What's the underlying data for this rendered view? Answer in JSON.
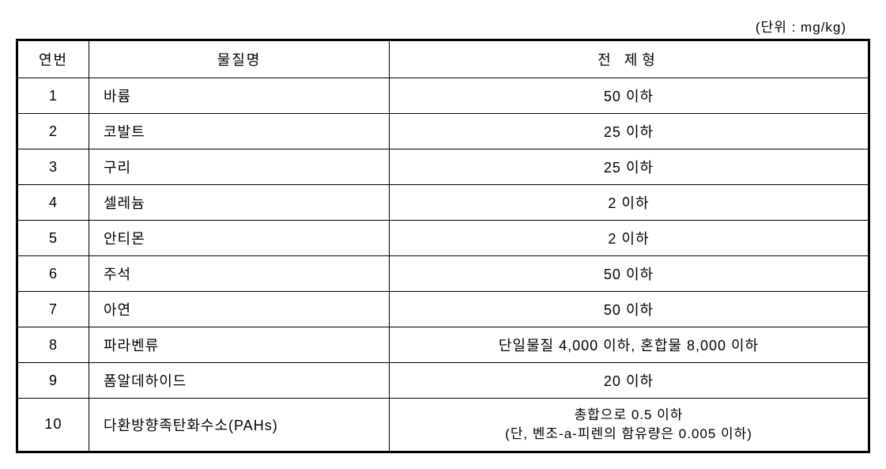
{
  "unit_label": "(단위 : mg/kg)",
  "table": {
    "headers": {
      "num": "연번",
      "name": "물질명",
      "limit": "전 제형"
    },
    "rows": [
      {
        "num": "1",
        "name": "바륨",
        "limit": "50 이하"
      },
      {
        "num": "2",
        "name": "코발트",
        "limit": "25 이하"
      },
      {
        "num": "3",
        "name": "구리",
        "limit": "25 이하"
      },
      {
        "num": "4",
        "name": "셀레늄",
        "limit": "2 이하"
      },
      {
        "num": "5",
        "name": "안티몬",
        "limit": "2 이하"
      },
      {
        "num": "6",
        "name": "주석",
        "limit": "50 이하"
      },
      {
        "num": "7",
        "name": "아연",
        "limit": "50 이하"
      },
      {
        "num": "8",
        "name": "파라벤류",
        "limit": "단일물질 4,000 이하, 혼합물 8,000 이하"
      },
      {
        "num": "9",
        "name": "폼알데하이드",
        "limit": "20 이하"
      },
      {
        "num": "10",
        "name": "다환방향족탄화수소(PAHs)",
        "limit": "총합으로 0.5 이하",
        "limit_sub": "(단, 벤조-a-피렌의 함유량은 0.005 이하)"
      }
    ],
    "column_widths": {
      "num": 90,
      "name": 380
    },
    "styling": {
      "outer_border_width": 2.5,
      "inner_border_width": 1,
      "border_color": "#000000",
      "background_color": "#ffffff",
      "font_size": 18,
      "header_font_size": 18,
      "text_color": "#000000",
      "cell_padding": 9
    }
  }
}
